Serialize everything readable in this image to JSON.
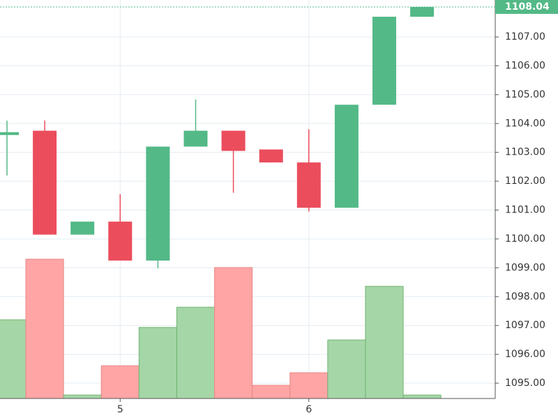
{
  "chart_data": {
    "type": "candlestick",
    "categories": [
      null,
      null,
      null,
      "5",
      null,
      null,
      null,
      null,
      "6",
      null,
      null,
      null
    ],
    "open": [
      1103.6,
      1103.75,
      1100.15,
      1100.6,
      1099.25,
      1103.2,
      1103.75,
      1103.1,
      1102.65,
      1101.08,
      1104.65,
      1107.7
    ],
    "high": [
      1104.1,
      1104.1,
      1100.6,
      1101.55,
      1103.2,
      1104.83,
      1103.75,
      1103.1,
      1103.8,
      1104.65,
      1107.7,
      1108.04
    ],
    "low": [
      1102.2,
      1100.15,
      1100.15,
      1099.25,
      1098.98,
      1103.2,
      1101.6,
      1102.65,
      1100.95,
      1101.08,
      1104.65,
      1107.7
    ],
    "close": [
      1103.7,
      1100.15,
      1100.6,
      1099.25,
      1103.2,
      1103.75,
      1103.05,
      1102.65,
      1101.08,
      1104.65,
      1107.7,
      1108.04
    ],
    "volume": [
      113,
      200,
      5,
      47,
      102,
      131,
      188,
      19,
      37,
      84,
      161,
      5
    ],
    "up_color": "#53b987",
    "down_color": "#eb4d5c",
    "volume_up_color": "#a5d6a7",
    "volume_down_color": "#ffa5a5",
    "last_price": 1108.04,
    "ylim": [
      1094.47,
      1108.28
    ],
    "yticks": [
      {
        "value": 1095,
        "label": "1095.00"
      },
      {
        "value": 1096,
        "label": "1096.00"
      },
      {
        "value": 1097,
        "label": "1097.00"
      },
      {
        "value": 1098,
        "label": "1098.00"
      },
      {
        "value": 1099,
        "label": "1099.00"
      },
      {
        "value": 1100,
        "label": "1100.00"
      },
      {
        "value": 1101,
        "label": "1101.00"
      },
      {
        "value": 1102,
        "label": "1102.00"
      },
      {
        "value": 1103,
        "label": "1103.00"
      },
      {
        "value": 1104,
        "label": "1104.00"
      },
      {
        "value": 1105,
        "label": "1105.00"
      },
      {
        "value": 1106,
        "label": "1106.00"
      },
      {
        "value": 1107,
        "label": "1107.00"
      }
    ],
    "grid": true
  }
}
